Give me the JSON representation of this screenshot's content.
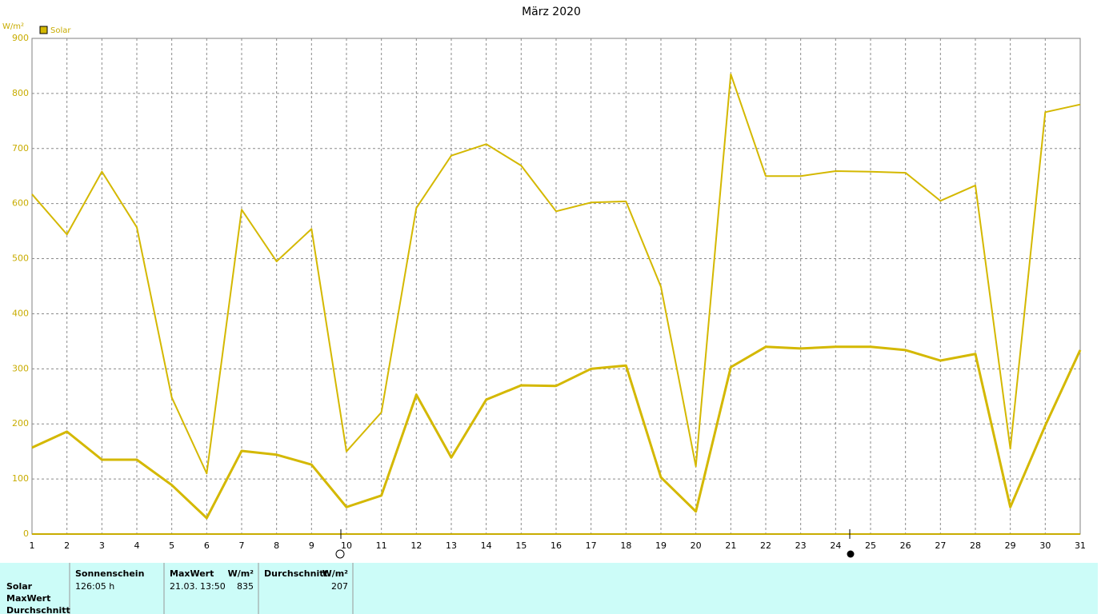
{
  "chart_data": {
    "type": "line",
    "title": "März 2020",
    "y_unit": "W/m²",
    "legend": "Solar",
    "legend_color": "#d4b800",
    "x": [
      1,
      2,
      3,
      4,
      5,
      6,
      7,
      8,
      9,
      10,
      11,
      12,
      13,
      14,
      15,
      16,
      17,
      18,
      19,
      20,
      21,
      22,
      23,
      24,
      25,
      26,
      27,
      28,
      29,
      30,
      31
    ],
    "xlim": [
      1,
      31
    ],
    "xticks": [
      1,
      2,
      3,
      4,
      5,
      6,
      7,
      8,
      9,
      10,
      11,
      12,
      13,
      14,
      15,
      16,
      17,
      18,
      19,
      20,
      21,
      22,
      23,
      24,
      25,
      26,
      27,
      28,
      29,
      30,
      31
    ],
    "ylim": [
      0,
      900
    ],
    "yticks": [
      0,
      100,
      200,
      300,
      400,
      500,
      600,
      700,
      800,
      900
    ],
    "grid": true,
    "series": [
      {
        "color": "#d4b800",
        "values": [
          617,
          544,
          658,
          557,
          248,
          110,
          589,
          495,
          554,
          150,
          221,
          592,
          687,
          708,
          669,
          586,
          602,
          604,
          449,
          123,
          835,
          650,
          650,
          659,
          658,
          656,
          605,
          633,
          155,
          766,
          780
        ]
      },
      {
        "color": "#d4b800",
        "values": [
          157,
          186,
          135,
          135,
          89,
          29,
          151,
          144,
          126,
          49,
          70,
          253,
          139,
          244,
          270,
          269,
          300,
          306,
          103,
          41,
          303,
          340,
          337,
          340,
          340,
          334,
          315,
          327,
          49,
          197,
          334
        ]
      }
    ]
  },
  "stats": {
    "row_labels": [
      "Solar",
      "MaxWert",
      "Durchschnitt"
    ],
    "headers": [
      "Sonnenschein",
      "MaxWert",
      "W/m²",
      "Durchschnitt",
      "W/m²"
    ],
    "values": [
      "126:05 h",
      "21.03.",
      "13:50",
      835,
      207
    ]
  }
}
